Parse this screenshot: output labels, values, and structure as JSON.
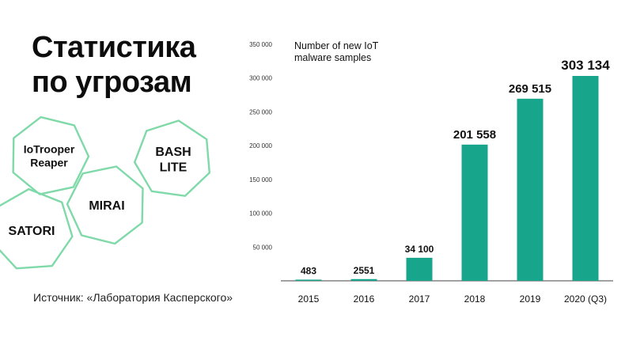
{
  "slide": {
    "title_line1": "Статистика",
    "title_line2": "по угрозам",
    "source": "Источник: «Лаборатория Касперского»"
  },
  "badges": [
    {
      "name": "badge-iotrooper-reaper",
      "lines": [
        "IoTrooper",
        "Reaper"
      ]
    },
    {
      "name": "badge-bash-lite",
      "lines": [
        "BASH",
        "LITE"
      ]
    },
    {
      "name": "badge-mirai",
      "lines": [
        "MIRAI"
      ]
    },
    {
      "name": "badge-satori",
      "lines": [
        "SATORI"
      ]
    }
  ],
  "colors": {
    "bar": "#17a68c",
    "badge_stroke": "#7fd9a8",
    "axis": "#444444",
    "text": "#111111"
  },
  "chart_data": {
    "type": "bar",
    "title_lines": [
      "Number of new IoT",
      "malware samples"
    ],
    "categories": [
      "2015",
      "2016",
      "2017",
      "2018",
      "2019",
      "2020 (Q3)"
    ],
    "values": [
      483,
      2551,
      34100,
      201558,
      269515,
      303134
    ],
    "value_labels": [
      "483",
      "2551",
      "34 100",
      "201 558",
      "269 515",
      "303 134"
    ],
    "ylim": [
      0,
      350000
    ],
    "yticks": [
      50000,
      100000,
      150000,
      200000,
      250000,
      300000,
      350000
    ],
    "ytick_labels": [
      "50 000",
      "100 000",
      "150 000",
      "200 000",
      "250 000",
      "300 000",
      "350 000"
    ],
    "grid": false,
    "legend": "none"
  }
}
